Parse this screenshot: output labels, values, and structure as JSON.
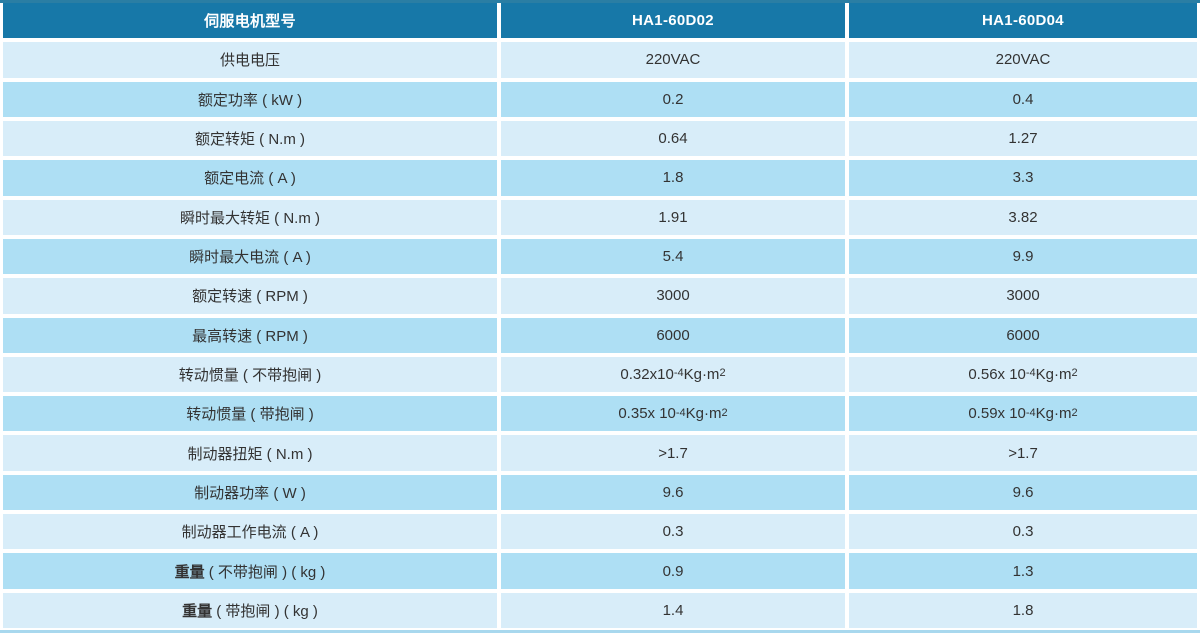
{
  "colors": {
    "header_bg": "#1778a8",
    "header_text": "#ffffff",
    "row_light": "#d8edf9",
    "row_medium": "#aedff4",
    "cell_text": "#333333",
    "top_border": "#2a7ea4",
    "bottom_border": "#a8d8ee",
    "page_bg": "#ffffff"
  },
  "table": {
    "columns": [
      {
        "key": "label",
        "header": "伺服电机型号"
      },
      {
        "key": "v1",
        "header": "HA1-60D02"
      },
      {
        "key": "v2",
        "header": "HA1-60D04"
      }
    ],
    "rows": [
      {
        "label": "供电电压",
        "v1": "220VAC",
        "v2": "220VAC"
      },
      {
        "label": "额定功率 ( kW )",
        "v1": "0.2",
        "v2": "0.4"
      },
      {
        "label": "额定转矩 ( N.m )",
        "v1": "0.64",
        "v2": "1.27"
      },
      {
        "label": "额定电流 ( A )",
        "v1": "1.8",
        "v2": "3.3"
      },
      {
        "label": "瞬时最大转矩 ( N.m )",
        "v1": "1.91",
        "v2": "3.82"
      },
      {
        "label": "瞬时最大电流 ( A )",
        "v1": "5.4",
        "v2": "9.9"
      },
      {
        "label": "额定转速 ( RPM )",
        "v1": "3000",
        "v2": "3000"
      },
      {
        "label": "最高转速 ( RPM )",
        "v1": "6000",
        "v2": "6000"
      },
      {
        "label": "转动惯量 ( 不带抱闸 )",
        "v1": "0.32x10⁻⁴Kg·m²",
        "v2": "0.56x 10⁻⁴Kg·m²"
      },
      {
        "label": "转动惯量 ( 带抱闸 )",
        "v1": "0.35x 10⁻⁴Kg·m²",
        "v2": "0.59x 10⁻⁴Kg·m²"
      },
      {
        "label": "制动器扭矩 ( N.m )",
        "v1": ">1.7",
        "v2": ">1.7"
      },
      {
        "label": "制动器功率 ( W )",
        "v1": "9.6",
        "v2": "9.6"
      },
      {
        "label": "制动器工作电流 ( A )",
        "v1": "0.3",
        "v2": "0.3"
      },
      {
        "label_bold": "重量",
        "label": " ( 不带抱闸 ) ( kg )",
        "v1": "0.9",
        "v2": "1.3"
      },
      {
        "label_bold": "重量",
        "label": " ( 带抱闸 ) ( kg )",
        "v1": "1.4",
        "v2": "1.8"
      }
    ]
  }
}
